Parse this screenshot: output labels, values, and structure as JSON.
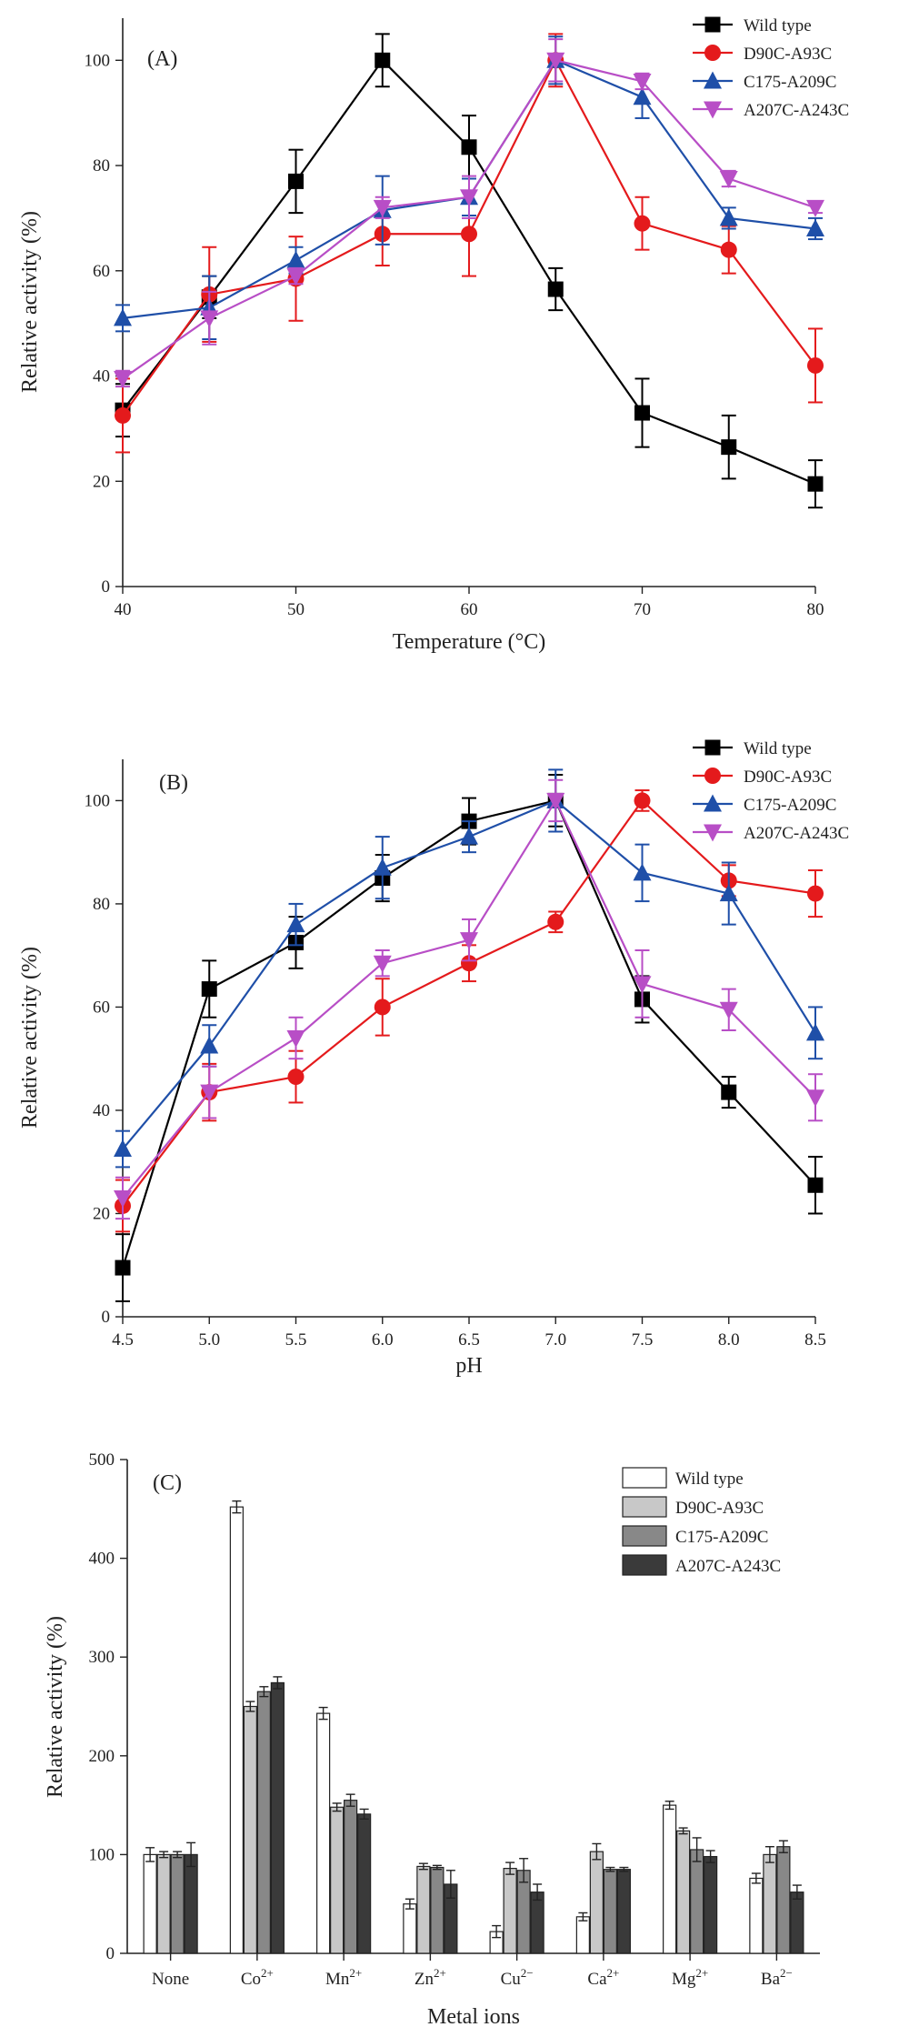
{
  "chart_data": [
    {
      "type": "line",
      "panel_label": "(A)",
      "xlabel": "Temperature (°C)",
      "ylabel": "Relative activity (%)",
      "x": [
        40,
        45,
        50,
        55,
        60,
        65,
        70,
        75,
        80
      ],
      "x_ticks": [
        40,
        50,
        60,
        70,
        80
      ],
      "xlim": [
        40,
        80
      ],
      "y_ticks": [
        0,
        20,
        40,
        60,
        80,
        100
      ],
      "ylim": [
        0,
        108
      ],
      "legend_position": "top-right",
      "series": [
        {
          "name": "Wild type",
          "color": "#000000",
          "marker": "square",
          "values": [
            33.5,
            55,
            77,
            100,
            83.5,
            56.5,
            33,
            26.5,
            19.5
          ],
          "errors": [
            5,
            4,
            6,
            5,
            6,
            4,
            6.5,
            6,
            4.5
          ]
        },
        {
          "name": "D90C-A93C",
          "color": "#e41a1c",
          "marker": "circle",
          "values": [
            32.5,
            55.5,
            58.5,
            67,
            67,
            100,
            69,
            64,
            42
          ],
          "errors": [
            7,
            9,
            8,
            6,
            8,
            5,
            5,
            4.5,
            7
          ]
        },
        {
          "name": "C175-A209C",
          "color": "#1f4fa8",
          "marker": "triangle-up",
          "values": [
            51,
            53,
            62,
            71.5,
            74,
            100,
            93,
            70,
            68
          ],
          "errors": [
            2.5,
            6,
            2.5,
            6.5,
            3.5,
            4.5,
            4,
            2,
            2
          ]
        },
        {
          "name": "A207C-A243C",
          "color": "#b84ec6",
          "marker": "triangle-down",
          "values": [
            39.5,
            51,
            59,
            72,
            74,
            100,
            96,
            77.5,
            72
          ],
          "errors": [
            1.5,
            5,
            1.5,
            2,
            4,
            4,
            1.5,
            1.5,
            1
          ]
        }
      ]
    },
    {
      "type": "line",
      "panel_label": "(B)",
      "xlabel": "pH",
      "ylabel": "Relative activity (%)",
      "x": [
        4.5,
        5.0,
        5.5,
        6.0,
        6.5,
        7.0,
        7.5,
        8.0,
        8.5
      ],
      "x_ticks": [
        "4.5",
        "5.0",
        "5.5",
        "6.0",
        "6.5",
        "7.0",
        "7.5",
        "8.0",
        "8.5"
      ],
      "xlim": [
        4.5,
        8.5
      ],
      "y_ticks": [
        0,
        20,
        40,
        60,
        80,
        100
      ],
      "ylim": [
        0,
        108
      ],
      "legend_position": "top-right",
      "series": [
        {
          "name": "Wild type",
          "color": "#000000",
          "marker": "square",
          "values": [
            9.5,
            63.5,
            72.5,
            85,
            96,
            100,
            61.5,
            43.5,
            25.5
          ],
          "errors": [
            6.5,
            5.5,
            5,
            4.5,
            4.5,
            5,
            4.5,
            3,
            5.5
          ]
        },
        {
          "name": "D90C-A93C",
          "color": "#e41a1c",
          "marker": "circle",
          "values": [
            21.5,
            43.5,
            46.5,
            60,
            68.5,
            76.5,
            100,
            84.5,
            82
          ],
          "errors": [
            5,
            5.5,
            5,
            5.5,
            3.5,
            2,
            2,
            3,
            4.5
          ]
        },
        {
          "name": "C175-A209C",
          "color": "#1f4fa8",
          "marker": "triangle-up",
          "values": [
            32.5,
            52.5,
            76,
            87,
            93,
            100,
            86,
            82,
            55
          ],
          "errors": [
            3.5,
            4,
            4,
            6,
            3,
            6,
            5.5,
            6,
            5
          ]
        },
        {
          "name": "A207C-A243C",
          "color": "#b84ec6",
          "marker": "triangle-down",
          "values": [
            23,
            43.5,
            54,
            68.5,
            73,
            100,
            64.5,
            59.5,
            42.5
          ],
          "errors": [
            4,
            5,
            4,
            2.5,
            4,
            4,
            6.5,
            4,
            4.5
          ]
        }
      ]
    },
    {
      "type": "bar",
      "panel_label": "(C)",
      "xlabel": "Metal ions",
      "ylabel": "Relative activity (%)",
      "categories": [
        {
          "base": "None",
          "sup": ""
        },
        {
          "base": "Co",
          "sup": "2+"
        },
        {
          "base": "Mn",
          "sup": "2+"
        },
        {
          "base": "Zn",
          "sup": "2+"
        },
        {
          "base": "Cu",
          "sup": "2−"
        },
        {
          "base": "Ca",
          "sup": "2+"
        },
        {
          "base": "Mg",
          "sup": "2+"
        },
        {
          "base": "Ba",
          "sup": "2−"
        }
      ],
      "y_ticks": [
        0,
        100,
        200,
        300,
        400,
        500
      ],
      "ylim": [
        0,
        500
      ],
      "legend_position": "top-right",
      "series": [
        {
          "name": "Wild type",
          "color": "#ffffff",
          "values": [
            100,
            452,
            243,
            50,
            22,
            37,
            150,
            76
          ],
          "errors": [
            7,
            6,
            6,
            5,
            6,
            4,
            4,
            5
          ]
        },
        {
          "name": "D90C-A93C",
          "color": "#c8c8c8",
          "values": [
            100,
            250,
            148,
            88,
            86,
            103,
            124,
            100
          ],
          "errors": [
            3,
            5,
            4,
            3,
            6,
            8,
            3,
            8
          ]
        },
        {
          "name": "C175-A209C",
          "color": "#888888",
          "values": [
            100,
            265,
            155,
            87,
            84,
            85,
            105,
            108
          ],
          "errors": [
            3,
            5,
            6,
            2,
            12,
            2,
            12,
            6
          ]
        },
        {
          "name": "A207C-A243C",
          "color": "#3a3a3a",
          "values": [
            100,
            274,
            141,
            70,
            62,
            85,
            98,
            62
          ],
          "errors": [
            12,
            6,
            5,
            14,
            8,
            2,
            6,
            7
          ]
        }
      ]
    }
  ]
}
